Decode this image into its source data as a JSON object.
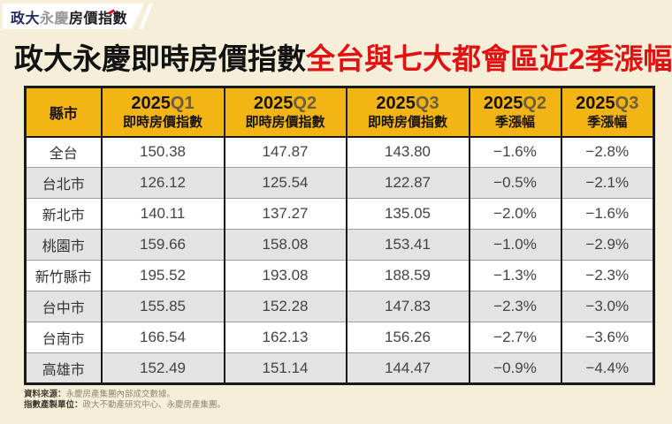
{
  "logo": {
    "part1": "政大",
    "part2": "永慶",
    "part3": "房價指數"
  },
  "title": {
    "black": "政大永慶即時房價指數",
    "red": "全台與七大都會區近2季漲幅"
  },
  "colors": {
    "background": "#F5EFDA",
    "header_yellow": "#F3B513",
    "row_alt_gray": "#E3E3E3",
    "title_red": "#E11011",
    "logo_accent_red": "#D7102C"
  },
  "table": {
    "columns": [
      {
        "label": "縣市"
      },
      {
        "year": "2025",
        "quarter": "Q1",
        "sub": "即時房價指數"
      },
      {
        "year": "2025",
        "quarter": "Q2",
        "sub": "即時房價指數"
      },
      {
        "year": "2025",
        "quarter": "Q3",
        "sub": "即時房價指數"
      },
      {
        "year": "2025",
        "quarter": "Q2",
        "sub": "季漲幅"
      },
      {
        "year": "2025",
        "quarter": "Q3",
        "sub": "季漲幅"
      }
    ],
    "rows": [
      {
        "city": "全台",
        "values": [
          "150.38",
          "147.87",
          "143.80",
          "−1.6%",
          "−2.8%"
        ]
      },
      {
        "city": "台北市",
        "values": [
          "126.12",
          "125.54",
          "122.87",
          "−0.5%",
          "−2.1%"
        ]
      },
      {
        "city": "新北市",
        "values": [
          "140.11",
          "137.27",
          "135.05",
          "−2.0%",
          "−1.6%"
        ]
      },
      {
        "city": "桃園市",
        "values": [
          "159.66",
          "158.08",
          "153.41",
          "−1.0%",
          "−2.9%"
        ]
      },
      {
        "city": "新竹縣市",
        "values": [
          "195.52",
          "193.08",
          "188.59",
          "−1.3%",
          "−2.3%"
        ]
      },
      {
        "city": "台中市",
        "values": [
          "155.85",
          "152.28",
          "147.83",
          "−2.3%",
          "−3.0%"
        ]
      },
      {
        "city": "台南市",
        "values": [
          "166.54",
          "162.13",
          "156.26",
          "−2.7%",
          "−3.6%"
        ]
      },
      {
        "city": "高雄市",
        "values": [
          "152.49",
          "151.14",
          "144.47",
          "−0.9%",
          "−4.4%"
        ]
      }
    ]
  },
  "footer": {
    "source_label": "資料來源：",
    "source_text": "永慶房產集團內部成交數據。",
    "producer_label": "指數產製單位：",
    "producer_text": "政大不動產研究中心、永慶房產集團。"
  },
  "chart_data": {
    "type": "table",
    "title": "政大永慶即時房價指數全台與七大都會區近2季漲幅",
    "columns": [
      "縣市",
      "2025Q1 即時房價指數",
      "2025Q2 即時房價指數",
      "2025Q3 即時房價指數",
      "2025Q2 季漲幅",
      "2025Q3 季漲幅"
    ],
    "rows": [
      [
        "全台",
        150.38,
        147.87,
        143.8,
        -1.6,
        -2.8
      ],
      [
        "台北市",
        126.12,
        125.54,
        122.87,
        -0.5,
        -2.1
      ],
      [
        "新北市",
        140.11,
        137.27,
        135.05,
        -2.0,
        -1.6
      ],
      [
        "桃園市",
        159.66,
        158.08,
        153.41,
        -1.0,
        -2.9
      ],
      [
        "新竹縣市",
        195.52,
        193.08,
        188.59,
        -1.3,
        -2.3
      ],
      [
        "台中市",
        155.85,
        152.28,
        147.83,
        -2.3,
        -3.0
      ],
      [
        "台南市",
        166.54,
        162.13,
        156.26,
        -2.7,
        -3.6
      ],
      [
        "高雄市",
        152.49,
        151.14,
        144.47,
        -0.9,
        -4.4
      ]
    ],
    "units": {
      "index": "index points",
      "change": "%"
    }
  }
}
